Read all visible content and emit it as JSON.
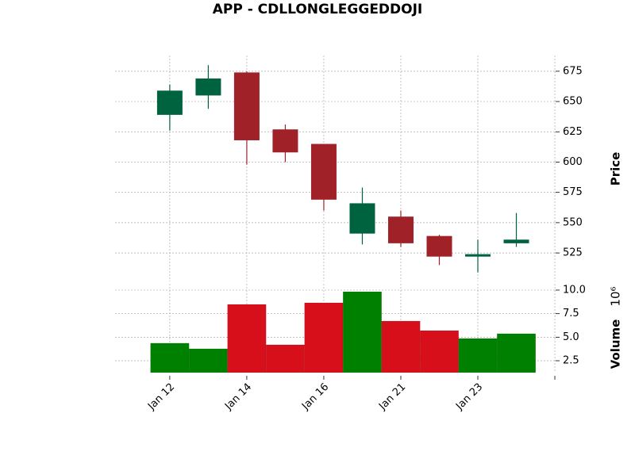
{
  "chart_data": {
    "type": "candlestick",
    "title": "APP - CDLLONGLEGGEDDOJI",
    "categories": [
      "Jan 12",
      null,
      "Jan 14",
      null,
      "Jan 16",
      null,
      "Jan 21",
      null,
      "Jan 23",
      null
    ],
    "open": [
      639,
      655,
      674,
      627,
      615,
      541,
      555,
      539,
      522,
      533
    ],
    "high": [
      664,
      680,
      675,
      631,
      615,
      579,
      560,
      540,
      536,
      558
    ],
    "low": [
      626,
      644,
      598,
      600,
      560,
      532,
      530,
      515,
      509,
      530
    ],
    "close": [
      659,
      669,
      618,
      608,
      569,
      566,
      533,
      522,
      524,
      536
    ],
    "volume": [
      4.36,
      3.77,
      8.48,
      4.19,
      8.65,
      9.83,
      6.71,
      5.7,
      4.86,
      5.37
    ],
    "up_color": "#006340",
    "down_color": "#a02128",
    "volume_up_color": "#008000",
    "volume_down_color": "#d60f1a",
    "ylabel": "Price",
    "y2label": "Volume",
    "y2_scale": "10⁶",
    "xlim": [
      -1.42,
      10.02
    ],
    "xticks": [
      0,
      2,
      4,
      6,
      8,
      10
    ],
    "ylim": [
      501.5,
      688
    ],
    "yticks": [
      525,
      550,
      575,
      600,
      625,
      650,
      675
    ],
    "y2lim": [
      1.24,
      10.67
    ],
    "y2ticks": [
      2.5,
      5.0,
      7.5,
      10.0
    ],
    "y2tick_labels": [
      "2.5",
      "5.0",
      "7.5",
      "10.0"
    ],
    "grid": true
  }
}
